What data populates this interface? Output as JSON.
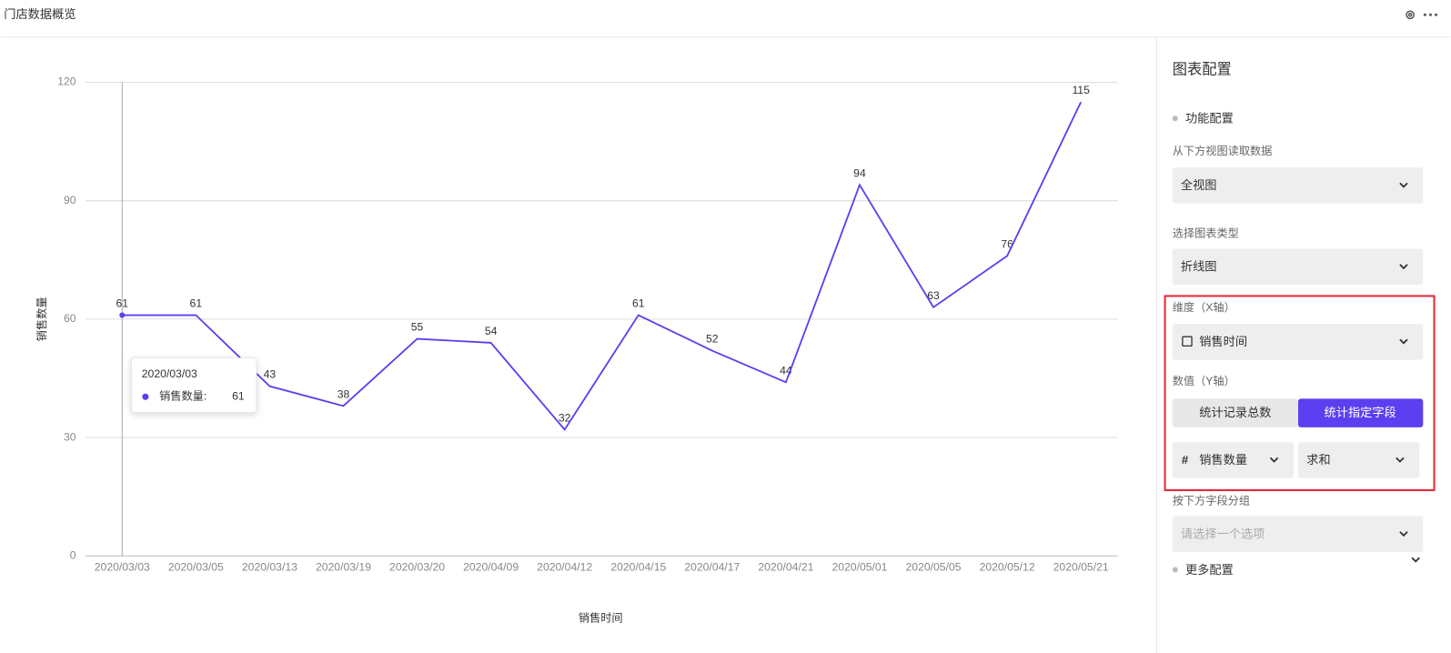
{
  "header": {
    "title": "门店数据概览"
  },
  "chart_data": {
    "type": "line",
    "x_label": "销售时间",
    "y_label": "销售数量",
    "categories": [
      "2020/03/03",
      "2020/03/05",
      "2020/03/13",
      "2020/03/19",
      "2020/03/20",
      "2020/04/09",
      "2020/04/12",
      "2020/04/15",
      "2020/04/17",
      "2020/04/21",
      "2020/05/01",
      "2020/05/05",
      "2020/05/12",
      "2020/05/21"
    ],
    "values": [
      61,
      61,
      43,
      38,
      55,
      54,
      32,
      61,
      52,
      44,
      94,
      63,
      76,
      115
    ],
    "color": "#5b3ff0",
    "ylim": [
      0,
      120
    ],
    "yticks": [
      0,
      30,
      60,
      90,
      120
    ],
    "grid": true
  },
  "tooltip": {
    "title": "2020/03/03",
    "label": "销售数量:",
    "value": 61
  },
  "panel": {
    "title": "图表配置",
    "section1": "功能配置",
    "source_label": "从下方视图读取数据",
    "source_value": "全视图",
    "type_label": "选择图表类型",
    "type_value": "折线图",
    "x_label": "维度（X轴）",
    "x_value": "销售时间",
    "y_label": "数值（Y轴）",
    "y_option1": "统计记录总数",
    "y_option2": "统计指定字段",
    "y_field": "销售数量",
    "y_agg": "求和",
    "group_label": "按下方字段分组",
    "group_placeholder": "请选择一个选项",
    "section2": "更多配置"
  }
}
